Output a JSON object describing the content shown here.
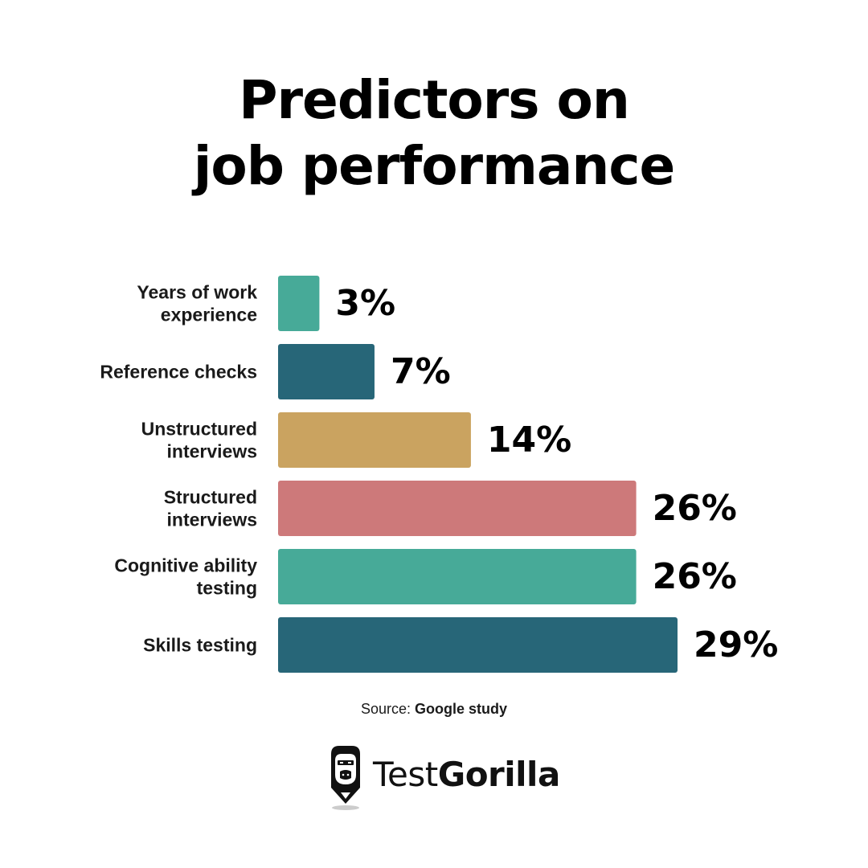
{
  "title": {
    "line1": "Predictors on",
    "line2": "job performance"
  },
  "chart_data": {
    "type": "bar",
    "orientation": "horizontal",
    "title": "Predictors on job performance",
    "categories": [
      [
        "Years of work",
        "experience"
      ],
      [
        "Reference checks"
      ],
      [
        "Unstructured",
        "interviews"
      ],
      [
        "Structured",
        "interviews"
      ],
      [
        "Cognitive ability",
        "testing"
      ],
      [
        "Skills testing"
      ]
    ],
    "values": [
      3,
      7,
      14,
      26,
      26,
      29
    ],
    "value_labels": [
      "3%",
      "7%",
      "14%",
      "26%",
      "26%",
      "29%"
    ],
    "colors": [
      "#47aa98",
      "#276678",
      "#caa360",
      "#cd797a",
      "#47aa98",
      "#276678"
    ],
    "unit": "%",
    "xlim": [
      0,
      29
    ],
    "grid": false,
    "legend": "none"
  },
  "source": {
    "prefix": "Source:",
    "name": "Google study"
  },
  "brand": {
    "part1": "Test",
    "part2": "Gorilla",
    "icon": "gorilla-pencil-icon"
  }
}
